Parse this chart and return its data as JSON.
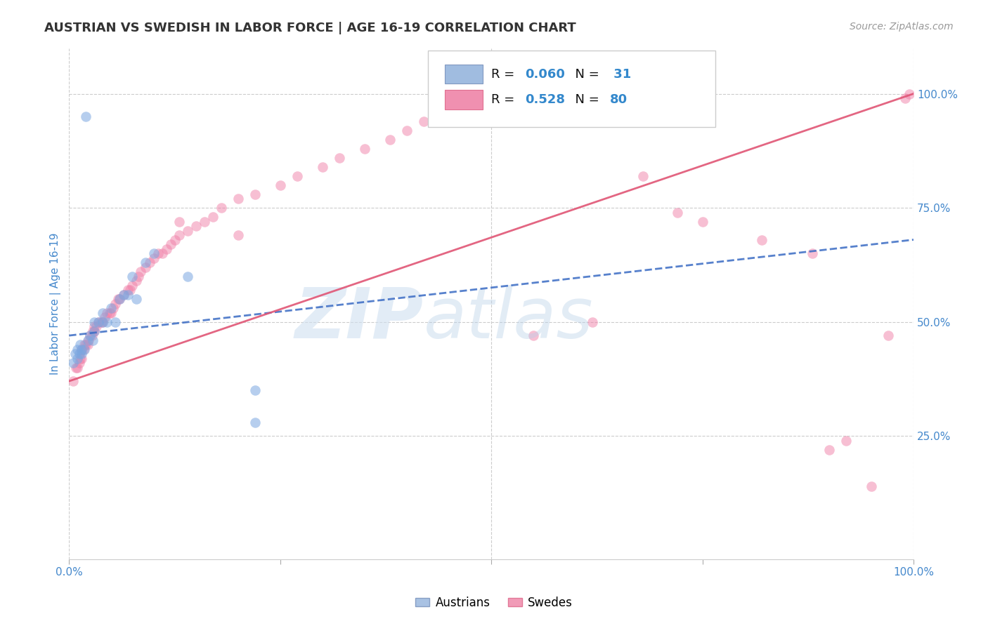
{
  "title": "AUSTRIAN VS SWEDISH IN LABOR FORCE | AGE 16-19 CORRELATION CHART",
  "source": "Source: ZipAtlas.com",
  "ylabel": "In Labor Force | Age 16-19",
  "xlim": [
    0.0,
    1.0
  ],
  "ylim": [
    -0.02,
    1.1
  ],
  "ytick_labels": [
    "25.0%",
    "50.0%",
    "75.0%",
    "100.0%"
  ],
  "ytick_positions": [
    0.25,
    0.5,
    0.75,
    1.0
  ],
  "austrians_x": [
    0.005,
    0.007,
    0.01,
    0.01,
    0.012,
    0.013,
    0.015,
    0.015,
    0.018,
    0.02,
    0.022,
    0.025,
    0.028,
    0.03,
    0.03,
    0.035,
    0.04,
    0.04,
    0.045,
    0.05,
    0.055,
    0.06,
    0.065,
    0.07,
    0.075,
    0.08,
    0.09,
    0.1,
    0.14,
    0.22,
    0.22
  ],
  "austrians_y": [
    0.41,
    0.43,
    0.42,
    0.44,
    0.43,
    0.45,
    0.43,
    0.44,
    0.44,
    0.95,
    0.46,
    0.47,
    0.46,
    0.48,
    0.5,
    0.5,
    0.5,
    0.52,
    0.5,
    0.53,
    0.5,
    0.55,
    0.56,
    0.56,
    0.6,
    0.55,
    0.63,
    0.65,
    0.6,
    0.28,
    0.35
  ],
  "swedes_x": [
    0.005,
    0.008,
    0.01,
    0.012,
    0.013,
    0.015,
    0.015,
    0.017,
    0.018,
    0.02,
    0.022,
    0.023,
    0.025,
    0.027,
    0.028,
    0.03,
    0.03,
    0.032,
    0.035,
    0.038,
    0.04,
    0.042,
    0.045,
    0.048,
    0.05,
    0.052,
    0.055,
    0.058,
    0.06,
    0.065,
    0.07,
    0.072,
    0.075,
    0.08,
    0.082,
    0.085,
    0.09,
    0.095,
    0.1,
    0.105,
    0.11,
    0.115,
    0.12,
    0.125,
    0.13,
    0.14,
    0.15,
    0.16,
    0.17,
    0.18,
    0.2,
    0.22,
    0.25,
    0.27,
    0.3,
    0.32,
    0.35,
    0.38,
    0.4,
    0.42,
    0.45,
    0.52,
    0.58,
    0.62,
    0.65,
    0.68,
    0.72,
    0.75,
    0.82,
    0.88,
    0.9,
    0.92,
    0.95,
    0.97,
    0.99,
    0.995,
    0.2,
    0.13,
    0.55,
    0.62
  ],
  "swedes_y": [
    0.37,
    0.4,
    0.4,
    0.41,
    0.42,
    0.42,
    0.44,
    0.44,
    0.45,
    0.45,
    0.45,
    0.46,
    0.47,
    0.47,
    0.48,
    0.48,
    0.49,
    0.49,
    0.5,
    0.5,
    0.5,
    0.51,
    0.52,
    0.52,
    0.52,
    0.53,
    0.54,
    0.55,
    0.55,
    0.56,
    0.57,
    0.57,
    0.58,
    0.59,
    0.6,
    0.61,
    0.62,
    0.63,
    0.64,
    0.65,
    0.65,
    0.66,
    0.67,
    0.68,
    0.69,
    0.7,
    0.71,
    0.72,
    0.73,
    0.75,
    0.77,
    0.78,
    0.8,
    0.82,
    0.84,
    0.86,
    0.88,
    0.9,
    0.92,
    0.94,
    0.96,
    0.98,
    1.0,
    1.0,
    0.97,
    0.82,
    0.74,
    0.72,
    0.68,
    0.65,
    0.22,
    0.24,
    0.14,
    0.47,
    0.99,
    1.0,
    0.69,
    0.72,
    0.47,
    0.5
  ],
  "blue_line_x": [
    0.0,
    1.0
  ],
  "blue_line_y": [
    0.47,
    0.68
  ],
  "pink_line_x": [
    0.0,
    1.0
  ],
  "pink_line_y": [
    0.37,
    1.0
  ],
  "dot_size": 110,
  "austrian_color": "#7ba7e0",
  "austrian_alpha": 0.55,
  "swede_color": "#f080a8",
  "swede_alpha": 0.5,
  "blue_line_color": "#3a6bc4",
  "pink_line_color": "#e05575",
  "grid_color": "#cccccc",
  "background_color": "#ffffff",
  "title_color": "#333333",
  "source_color": "#999999",
  "tick_label_color": "#4488cc"
}
